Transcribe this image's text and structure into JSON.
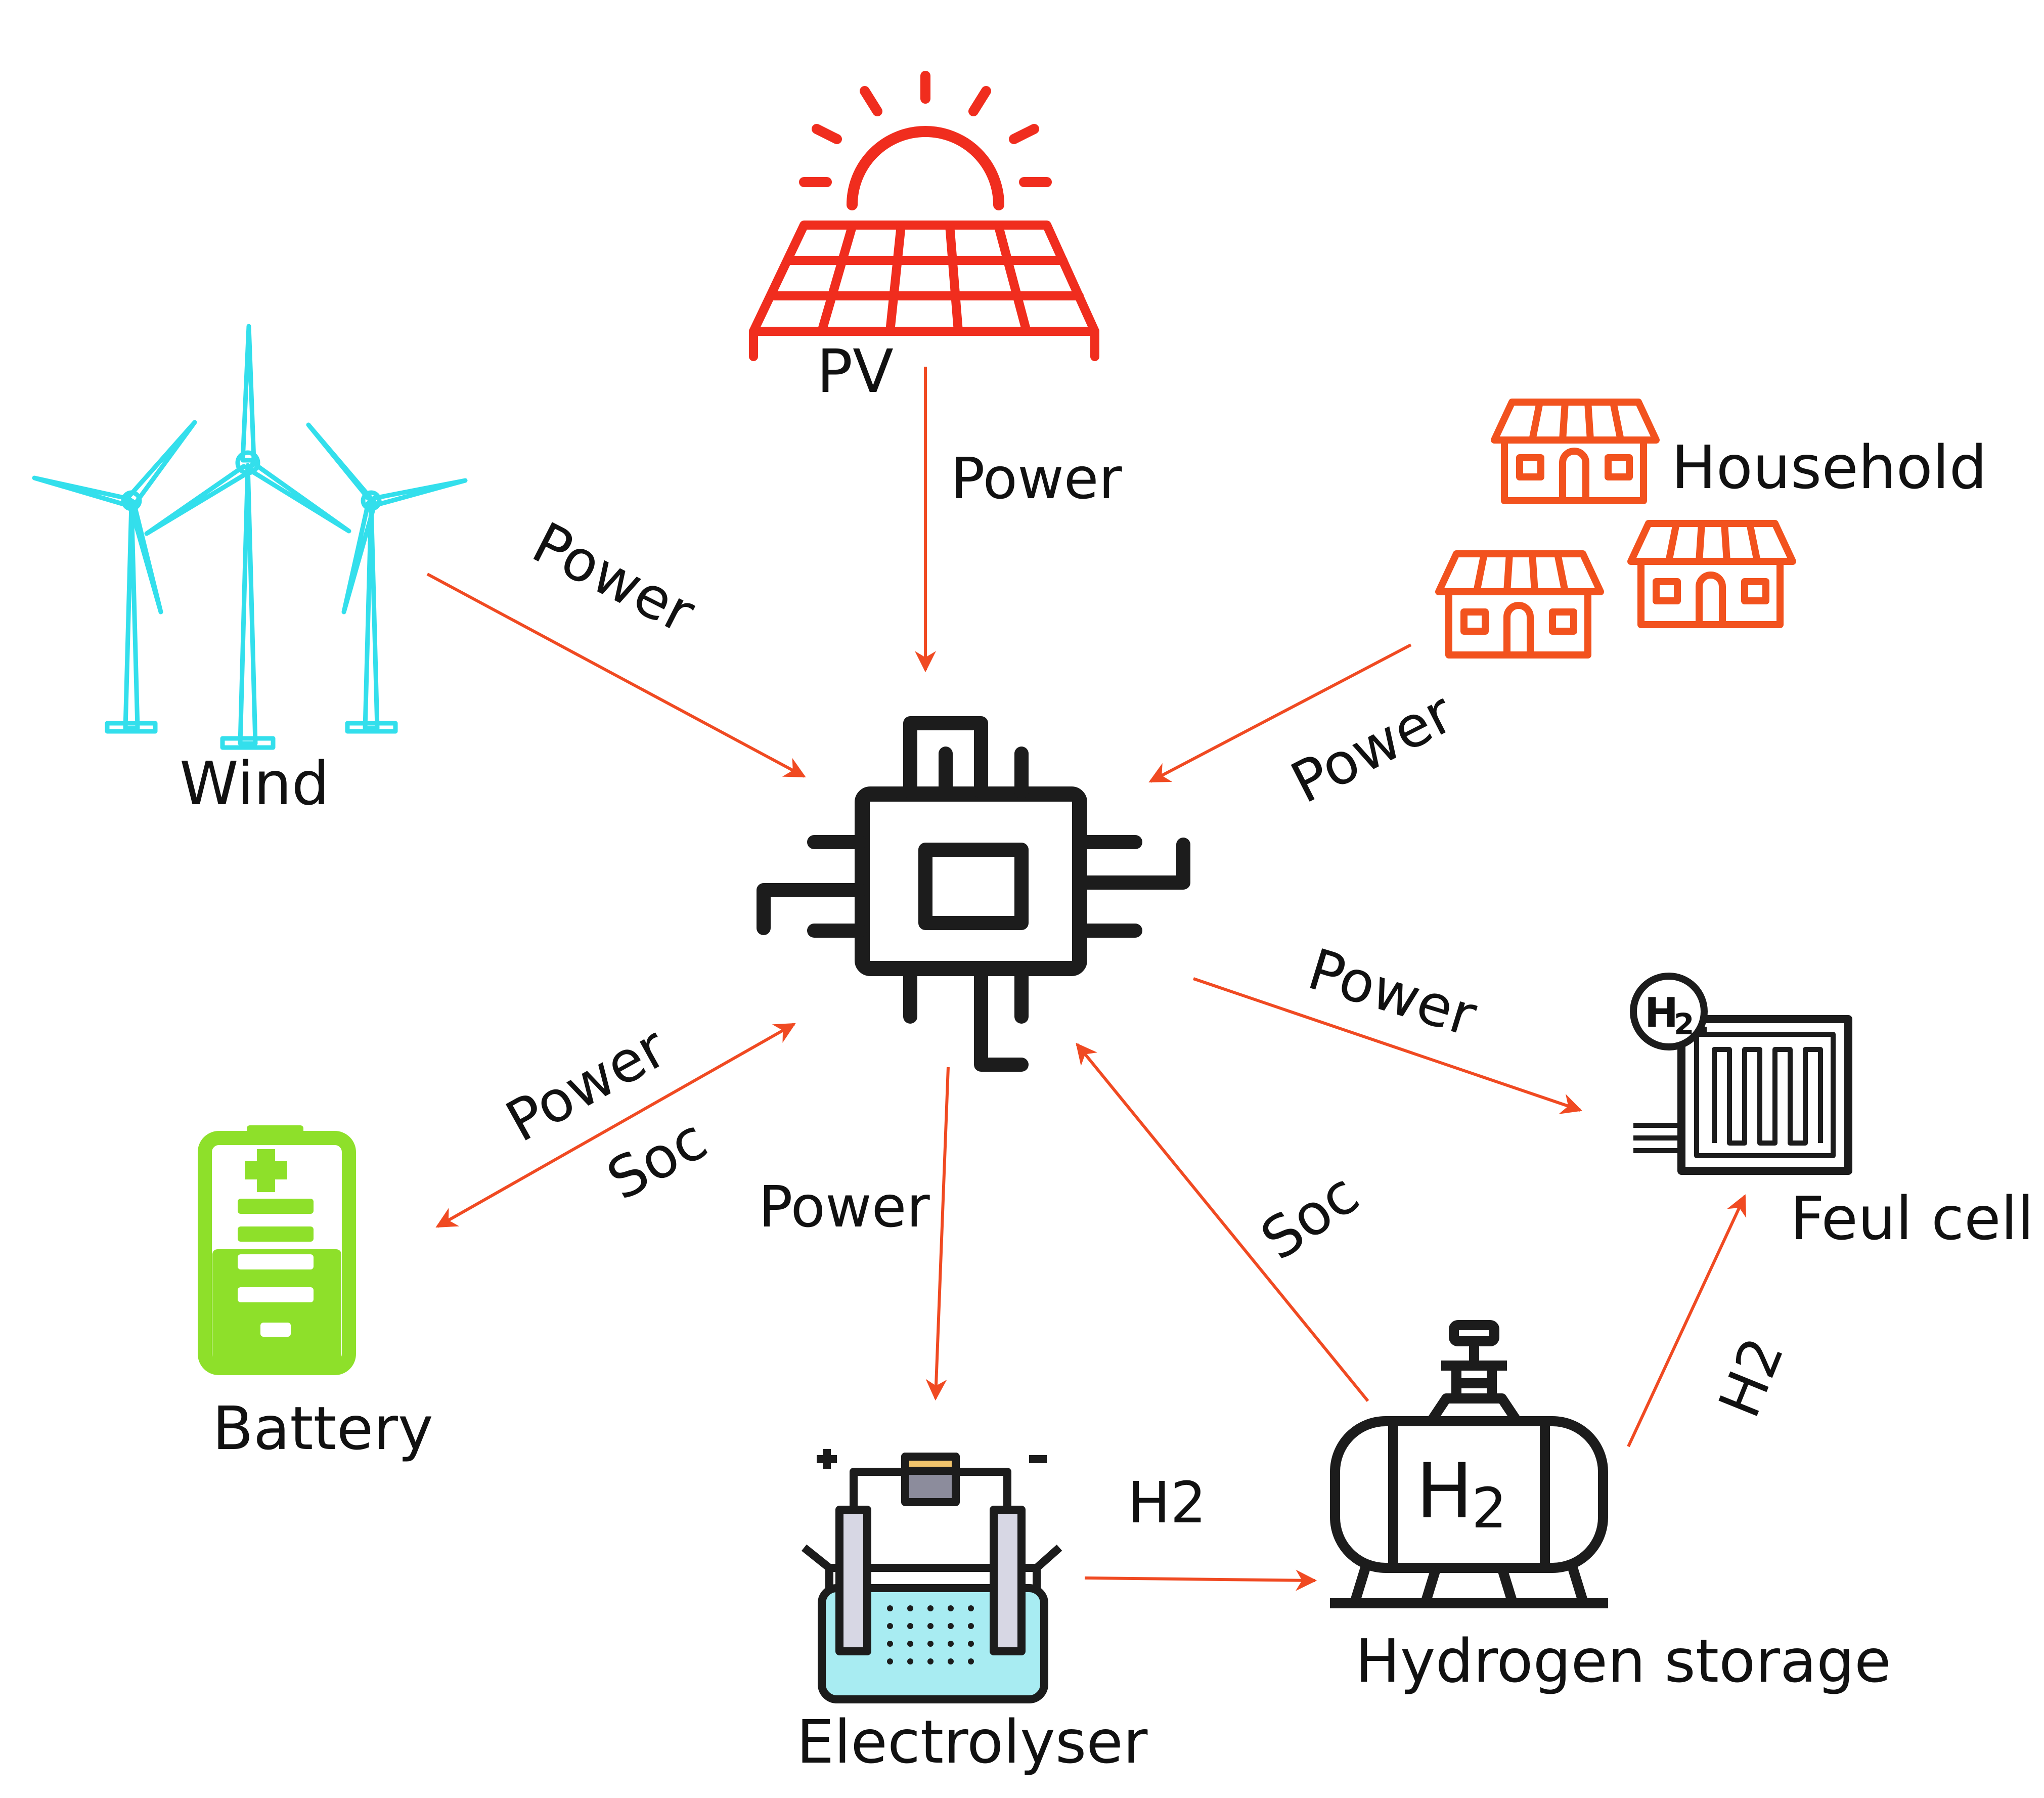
{
  "colors": {
    "arrow": "#f04a22",
    "pv": "#f02d1e",
    "wind": "#33dfec",
    "household": "#f2521e",
    "battery": "#8ee02a",
    "controller": "#1c1c1c",
    "electrolyte": "#a8ecf2"
  },
  "nodes": {
    "pv": {
      "label": "PV",
      "icon": "solar-panel-icon"
    },
    "wind": {
      "label": "Wind",
      "icon": "wind-turbine-icon"
    },
    "household": {
      "label": "Household",
      "icon": "house-icon"
    },
    "controller": {
      "icon": "microchip-icon"
    },
    "battery": {
      "label": "Battery",
      "icon": "battery-icon"
    },
    "electrolyser": {
      "label": "Electrolyser",
      "icon": "electrolyser-icon"
    },
    "hydrogen_storage": {
      "label": "Hydrogen storage",
      "icon": "hydrogen-tank-icon",
      "badge_main": "H",
      "badge_sub": "2"
    },
    "fuel_cell": {
      "label": "Feul cell",
      "icon": "fuel-cell-icon",
      "badge_main": "H",
      "badge_sub": "2"
    }
  },
  "edges": [
    {
      "from": "pv",
      "to": "controller",
      "labels": [
        "Power"
      ]
    },
    {
      "from": "wind",
      "to": "controller",
      "labels": [
        "Power"
      ]
    },
    {
      "from": "household",
      "to": "controller",
      "labels": [
        "Power"
      ]
    },
    {
      "from": "controller",
      "to": "battery",
      "bidirectional": true,
      "labels": [
        "Power",
        "Soc"
      ]
    },
    {
      "from": "controller",
      "to": "electrolyser",
      "labels": [
        "Power"
      ]
    },
    {
      "from": "controller",
      "to": "fuel_cell",
      "labels": [
        "Power"
      ]
    },
    {
      "from": "hydrogen_storage",
      "to": "controller",
      "labels": [
        "Soc"
      ]
    },
    {
      "from": "electrolyser",
      "to": "hydrogen_storage",
      "labels": [
        "H2"
      ]
    },
    {
      "from": "hydrogen_storage",
      "to": "fuel_cell",
      "labels": [
        "H2"
      ]
    }
  ]
}
